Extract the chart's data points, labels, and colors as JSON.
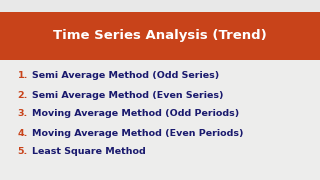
{
  "title": "Time Series Analysis (Trend)",
  "title_bg_color": "#C8431A",
  "title_text_color": "#FFFFFF",
  "body_bg_color": "#EDEDEC",
  "top_strip_color": "#E8E8E8",
  "number_color": "#C8431A",
  "text_color": "#1A1A6E",
  "items": [
    "Semi Average Method (Odd Series)",
    "Semi Average Method (Even Series)",
    "Moving Average Method (Odd Periods)",
    "Moving Average Method (Even Periods)",
    "Least Square Method"
  ],
  "title_fontsize": 9.5,
  "item_fontsize": 6.8,
  "fig_width": 3.2,
  "fig_height": 1.8,
  "dpi": 100
}
